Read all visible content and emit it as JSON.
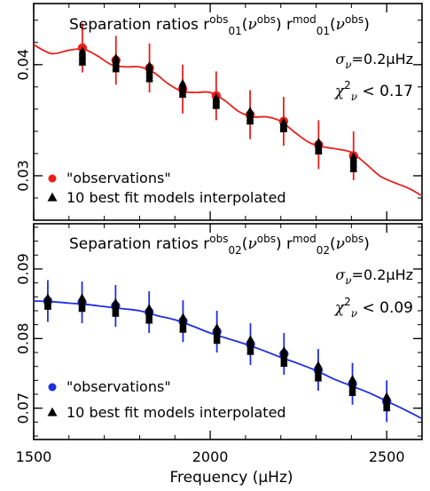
{
  "chart_data": [
    {
      "type": "scatter",
      "title": "Separation ratios r01obs(νobs)   r01mod(νobs)",
      "title_parts": {
        "prefix": "Separation ratios",
        "obs_r": "r",
        "obs_sup": "obs",
        "obs_sub": "01",
        "obs_arg": "ν",
        "obs_arg_sup": "obs",
        "mod_r": "r",
        "mod_sup": "mod",
        "mod_sub": "01",
        "mod_arg": "ν",
        "mod_arg_sup": "obs"
      },
      "sigma_label": {
        "sym": "σ",
        "sub": "ν",
        "rest": "=0.2μHz"
      },
      "chi_label": {
        "sym": "χ",
        "sup": "2",
        "sub": "ν",
        "rest": "< 0.17"
      },
      "xlim": [
        1500,
        2600
      ],
      "ylim": [
        0.026,
        0.0455
      ],
      "y_ticks": [
        0.03,
        0.04
      ],
      "y_tick_labels": [
        "0.03",
        "0.04"
      ],
      "color_obs": "#e8201a",
      "legend": [
        "\"observations\"",
        "10 best fit models interpolated"
      ],
      "legend_position": "bottom-left",
      "series": [
        {
          "name": "\"observations\"",
          "x": [
            1638,
            1733,
            1828,
            1922,
            2017,
            2113,
            2208,
            2307,
            2406
          ],
          "y": [
            0.0415,
            0.0404,
            0.0397,
            0.0378,
            0.0372,
            0.0355,
            0.0349,
            0.0328,
            0.0318
          ],
          "err": [
            0.0022,
            0.0022,
            0.0022,
            0.0022,
            0.0022,
            0.0022,
            0.0022,
            0.0022,
            0.0022
          ]
        },
        {
          "name": "10 best fit models interpolated",
          "x": [
            1638,
            1733,
            1828,
            1922,
            2017,
            2113,
            2208,
            2307,
            2406
          ],
          "y_ranges": [
            [
              0.0402,
              0.0413
            ],
            [
              0.0396,
              0.0407
            ],
            [
              0.0387,
              0.04
            ],
            [
              0.0373,
              0.0384
            ],
            [
              0.0363,
              0.0371
            ],
            [
              0.0349,
              0.0359
            ],
            [
              0.0342,
              0.0349
            ],
            [
              0.0322,
              0.0331
            ],
            [
              0.0306,
              0.0318
            ]
          ]
        },
        {
          "name": "model curve",
          "x": [
            1500,
            1550,
            1600,
            1640,
            1680,
            1720,
            1760,
            1800,
            1840,
            1880,
            1920,
            1960,
            2000,
            2040,
            2080,
            2120,
            2160,
            2200,
            2240,
            2280,
            2320,
            2360,
            2400,
            2440,
            2480,
            2520,
            2560,
            2600
          ],
          "y": [
            0.0418,
            0.041,
            0.0413,
            0.0414,
            0.0408,
            0.04,
            0.0398,
            0.0398,
            0.0393,
            0.0383,
            0.0376,
            0.0375,
            0.0375,
            0.0368,
            0.0358,
            0.0353,
            0.0353,
            0.0349,
            0.0339,
            0.033,
            0.0326,
            0.0324,
            0.0321,
            0.0311,
            0.03,
            0.0294,
            0.0289,
            0.0282
          ]
        }
      ]
    },
    {
      "type": "scatter",
      "title": "Separation ratios r02obs(νobs)   r02mod(νobs)",
      "title_parts": {
        "prefix": "Separation ratios",
        "obs_r": "r",
        "obs_sup": "obs",
        "obs_sub": "02",
        "obs_arg": "ν",
        "obs_arg_sup": "obs",
        "mod_r": "r",
        "mod_sup": "mod",
        "mod_sub": "02",
        "mod_arg": "ν",
        "mod_arg_sup": "obs"
      },
      "sigma_label": {
        "sym": "σ",
        "sub": "ν",
        "rest": "=0.2μHz"
      },
      "chi_label": {
        "sym": "χ",
        "sup": "2",
        "sub": "ν",
        "rest": "< 0.09"
      },
      "xlim": [
        1500,
        2600
      ],
      "xlabel": "Frequency (μHz)",
      "x_ticks": [
        1500,
        2000,
        2500
      ],
      "x_tick_labels": [
        "1500",
        "2000",
        "2500"
      ],
      "ylim": [
        0.0655,
        0.0965
      ],
      "y_ticks": [
        0.07,
        0.08,
        0.09
      ],
      "y_tick_labels": [
        "0.07",
        "0.08",
        "0.09"
      ],
      "color_obs": "#1f2ee0",
      "legend": [
        "\"observations\"",
        "10 best fit models interpolated"
      ],
      "legend_position": "bottom-left",
      "series": [
        {
          "name": "\"observations\"",
          "x": [
            1540,
            1637,
            1732,
            1827,
            1923,
            2019,
            2114,
            2209,
            2306,
            2403,
            2500
          ],
          "y": [
            0.0854,
            0.0852,
            0.0847,
            0.0838,
            0.0825,
            0.081,
            0.0792,
            0.0778,
            0.0755,
            0.0735,
            0.071
          ],
          "err": [
            0.003,
            0.003,
            0.003,
            0.003,
            0.003,
            0.003,
            0.003,
            0.003,
            0.003,
            0.003,
            0.003
          ]
        },
        {
          "name": "10 best fit models interpolated",
          "x": [
            1540,
            1637,
            1732,
            1827,
            1923,
            2019,
            2114,
            2209,
            2306,
            2403,
            2500
          ],
          "y_ranges": [
            [
              0.0846,
              0.086
            ],
            [
              0.0843,
              0.086
            ],
            [
              0.0836,
              0.0853
            ],
            [
              0.0826,
              0.0845
            ],
            [
              0.0813,
              0.0832
            ],
            [
              0.0797,
              0.0817
            ],
            [
              0.0781,
              0.08
            ],
            [
              0.0764,
              0.0784
            ],
            [
              0.0743,
              0.0763
            ],
            [
              0.0722,
              0.0743
            ],
            [
              0.07,
              0.0718
            ]
          ]
        },
        {
          "name": "model curve",
          "x": [
            1500,
            1550,
            1600,
            1650,
            1700,
            1750,
            1800,
            1850,
            1900,
            1950,
            2000,
            2050,
            2100,
            2150,
            2200,
            2250,
            2300,
            2350,
            2400,
            2450,
            2500,
            2550,
            2600
          ],
          "y": [
            0.0854,
            0.0853,
            0.0851,
            0.0849,
            0.0846,
            0.0843,
            0.084,
            0.0833,
            0.0827,
            0.0818,
            0.0808,
            0.08,
            0.0792,
            0.0783,
            0.0773,
            0.0764,
            0.0754,
            0.0742,
            0.0732,
            0.0722,
            0.071,
            0.0698,
            0.0685
          ]
        }
      ]
    }
  ]
}
